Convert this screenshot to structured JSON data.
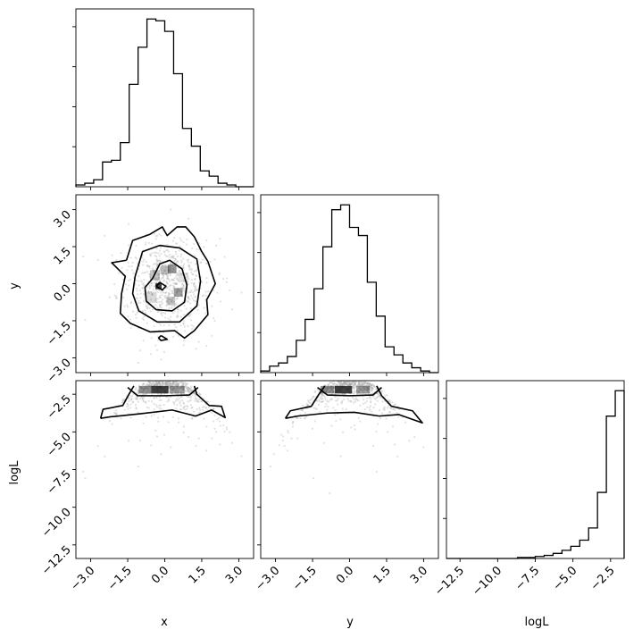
{
  "chart_data": {
    "type": "corner",
    "parameters": [
      "x",
      "y",
      "logL"
    ],
    "grid": false,
    "colors": {
      "line": "#000000",
      "points": "#aaaaaa",
      "density": "#000000",
      "background": "#ffffff"
    },
    "axis_labels": {
      "x_row": [
        "x",
        "y",
        "logL"
      ],
      "y_col": [
        "y",
        "logL"
      ]
    },
    "ranges": {
      "x": [
        -3.6,
        3.6
      ],
      "y": [
        -3.6,
        3.6
      ],
      "logL": [
        -13.4,
        -1.6
      ]
    },
    "ticks": {
      "x": {
        "values": [
          -3.0,
          -1.5,
          0.0,
          1.5,
          3.0
        ],
        "labels": [
          "−3.0",
          "−1.5",
          "0.0",
          "1.5",
          "3.0"
        ]
      },
      "y": {
        "values": [
          -3.0,
          -1.5,
          0.0,
          1.5,
          3.0
        ],
        "labels": [
          "−3.0",
          "−1.5",
          "0.0",
          "1.5",
          "3.0"
        ]
      },
      "logL": {
        "values": [
          -12.5,
          -10.0,
          -7.5,
          -5.0,
          -2.5
        ],
        "labels": [
          "−12.5",
          "−10.0",
          "−7.5",
          "−5.0",
          "−2.5"
        ]
      }
    },
    "histograms": {
      "x": {
        "edges": [
          -3.6,
          -3.24,
          -2.88,
          -2.52,
          -2.16,
          -1.8,
          -1.44,
          -1.08,
          -0.72,
          -0.36,
          0.0,
          0.36,
          0.72,
          1.08,
          1.44,
          1.8,
          2.16,
          2.52,
          2.88,
          3.24,
          3.6
        ],
        "counts": [
          1,
          2,
          4,
          14,
          15,
          25,
          58,
          79,
          95,
          94,
          88,
          64,
          33,
          23,
          9,
          6,
          2,
          1,
          0,
          0
        ]
      },
      "y": {
        "edges": [
          -3.6,
          -3.24,
          -2.88,
          -2.52,
          -2.16,
          -1.8,
          -1.44,
          -1.08,
          -0.72,
          -0.36,
          0.0,
          0.36,
          0.72,
          1.08,
          1.44,
          1.8,
          2.16,
          2.52,
          2.88,
          3.24,
          3.6
        ],
        "counts": [
          1,
          4,
          6,
          10,
          20,
          33,
          52,
          78,
          101,
          104,
          90,
          85,
          56,
          35,
          16,
          11,
          6,
          3,
          1,
          0
        ]
      },
      "logL": {
        "edges": [
          -13.4,
          -12.81,
          -12.22,
          -11.63,
          -11.04,
          -10.45,
          -9.86,
          -9.27,
          -8.68,
          -8.09,
          -7.5,
          -6.91,
          -6.32,
          -5.73,
          -5.14,
          -4.55,
          -3.96,
          -3.37,
          -2.78,
          -2.19,
          -1.6
        ],
        "counts": [
          0,
          0,
          0,
          0,
          0,
          0,
          0,
          0,
          1,
          1,
          2,
          3,
          5,
          8,
          12,
          18,
          30,
          65,
          140,
          165
        ]
      }
    },
    "contours_xy": [
      [
        [
          -0.35,
          -0.1
        ],
        [
          -0.2,
          0.05
        ],
        [
          0.05,
          -0.1
        ],
        [
          -0.1,
          -0.25
        ],
        [
          -0.35,
          -0.1
        ]
      ],
      [
        [
          -0.5,
          0.2
        ],
        [
          -0.2,
          0.8
        ],
        [
          0.2,
          0.95
        ],
        [
          0.7,
          0.6
        ],
        [
          0.9,
          -0.05
        ],
        [
          0.8,
          -0.75
        ],
        [
          0.3,
          -1.1
        ],
        [
          -0.35,
          -1.05
        ],
        [
          -0.75,
          -0.7
        ],
        [
          -0.8,
          -0.15
        ],
        [
          -0.5,
          0.2
        ]
      ],
      [
        [
          -1.2,
          0.3
        ],
        [
          -0.9,
          1.3
        ],
        [
          -0.2,
          1.55
        ],
        [
          0.6,
          1.45
        ],
        [
          1.3,
          1.0
        ],
        [
          1.45,
          0.1
        ],
        [
          1.3,
          -0.9
        ],
        [
          0.6,
          -1.55
        ],
        [
          -0.3,
          -1.55
        ],
        [
          -1.05,
          -1.1
        ],
        [
          -1.3,
          -0.4
        ],
        [
          -1.2,
          0.3
        ]
      ],
      [
        [
          -1.55,
          0.95
        ],
        [
          -1.3,
          1.75
        ],
        [
          -0.6,
          2.0
        ],
        [
          -0.1,
          2.3
        ],
        [
          0.1,
          1.95
        ],
        [
          0.5,
          2.3
        ],
        [
          0.85,
          2.3
        ],
        [
          1.2,
          1.9
        ],
        [
          1.5,
          1.3
        ],
        [
          1.75,
          0.9
        ],
        [
          2.05,
          0.0
        ],
        [
          1.7,
          -0.65
        ],
        [
          1.75,
          -1.25
        ],
        [
          1.2,
          -1.9
        ],
        [
          0.8,
          -2.2
        ],
        [
          0.4,
          -1.9
        ],
        [
          -0.6,
          -1.95
        ],
        [
          -1.4,
          -1.6
        ],
        [
          -1.8,
          -1.2
        ],
        [
          -1.75,
          -0.4
        ],
        [
          -1.6,
          0.3
        ],
        [
          -2.15,
          0.85
        ],
        [
          -1.55,
          0.95
        ]
      ],
      [
        [
          -0.15,
          -2.1
        ],
        [
          0.1,
          -2.25
        ],
        [
          -0.15,
          -2.3
        ],
        [
          -0.25,
          -2.2
        ],
        [
          -0.15,
          -2.1
        ]
      ]
    ],
    "contours_ylogL": [
      [
        [
          -1.3,
          -2.05
        ],
        [
          -0.9,
          -2.55
        ],
        [
          0.0,
          -2.6
        ],
        [
          0.95,
          -2.55
        ],
        [
          1.3,
          -2.05
        ]
      ],
      [
        [
          -2.6,
          -4.1
        ],
        [
          -2.4,
          -3.6
        ],
        [
          -1.55,
          -3.3
        ],
        [
          -1.2,
          -2.4
        ],
        [
          -1.0,
          -1.95
        ]
      ],
      [
        [
          1.1,
          -1.95
        ],
        [
          1.3,
          -2.6
        ],
        [
          1.7,
          -3.3
        ],
        [
          2.55,
          -3.6
        ],
        [
          2.95,
          -4.4
        ],
        [
          2.0,
          -3.85
        ],
        [
          1.2,
          -3.95
        ],
        [
          0.2,
          -3.7
        ],
        [
          -0.9,
          -3.75
        ],
        [
          -2.1,
          -3.95
        ],
        [
          -2.6,
          -4.1
        ]
      ]
    ],
    "contours_xlogL": [
      [
        [
          -1.5,
          -2.05
        ],
        [
          -1.1,
          -2.6
        ],
        [
          0.0,
          -2.6
        ],
        [
          1.0,
          -2.55
        ],
        [
          1.35,
          -2.05
        ]
      ],
      [
        [
          -2.6,
          -4.1
        ],
        [
          -2.5,
          -3.5
        ],
        [
          -1.7,
          -3.25
        ],
        [
          -1.45,
          -2.5
        ],
        [
          -1.25,
          -1.95
        ]
      ],
      [
        [
          1.2,
          -1.95
        ],
        [
          1.3,
          -2.5
        ],
        [
          1.8,
          -3.25
        ],
        [
          2.3,
          -3.3
        ],
        [
          2.45,
          -4.05
        ],
        [
          1.9,
          -3.55
        ],
        [
          1.25,
          -3.95
        ],
        [
          0.3,
          -3.55
        ],
        [
          -1.0,
          -3.8
        ],
        [
          -2.2,
          -4.0
        ],
        [
          -2.6,
          -4.1
        ]
      ]
    ],
    "density_cells_xy": [
      {
        "x": -0.25,
        "y": -0.1,
        "w": 0.25,
        "h": 0.25,
        "level": 1.0
      },
      {
        "x": 0.3,
        "y": 0.6,
        "w": 0.35,
        "h": 0.35,
        "level": 0.55
      },
      {
        "x": 0.55,
        "y": -0.35,
        "w": 0.35,
        "h": 0.35,
        "level": 0.5
      },
      {
        "x": 0.0,
        "y": 0.55,
        "w": 0.35,
        "h": 0.35,
        "level": 0.35
      },
      {
        "x": -0.4,
        "y": 0.35,
        "w": 0.4,
        "h": 0.4,
        "level": 0.3
      },
      {
        "x": 0.25,
        "y": -0.7,
        "w": 0.35,
        "h": 0.35,
        "level": 0.3
      },
      {
        "x": -0.55,
        "y": -0.55,
        "w": 0.45,
        "h": 0.45,
        "level": 0.2
      },
      {
        "x": 0.75,
        "y": 0.25,
        "w": 0.4,
        "h": 0.4,
        "level": 0.15
      }
    ],
    "density_cells_xlogL": [
      {
        "x": -0.2,
        "y": -2.2,
        "w": 0.7,
        "h": 0.5,
        "level": 1.0
      },
      {
        "x": -0.8,
        "y": -2.2,
        "w": 0.5,
        "h": 0.5,
        "level": 0.55
      },
      {
        "x": 0.5,
        "y": -2.2,
        "w": 0.6,
        "h": 0.5,
        "level": 0.5
      }
    ],
    "density_cells_ylogL": [
      {
        "x": -0.25,
        "y": -2.2,
        "w": 0.7,
        "h": 0.5,
        "level": 1.0
      },
      {
        "x": -0.9,
        "y": -2.2,
        "w": 0.55,
        "h": 0.5,
        "level": 0.55
      },
      {
        "x": 0.55,
        "y": -2.2,
        "w": 0.55,
        "h": 0.5,
        "level": 0.5
      }
    ]
  }
}
